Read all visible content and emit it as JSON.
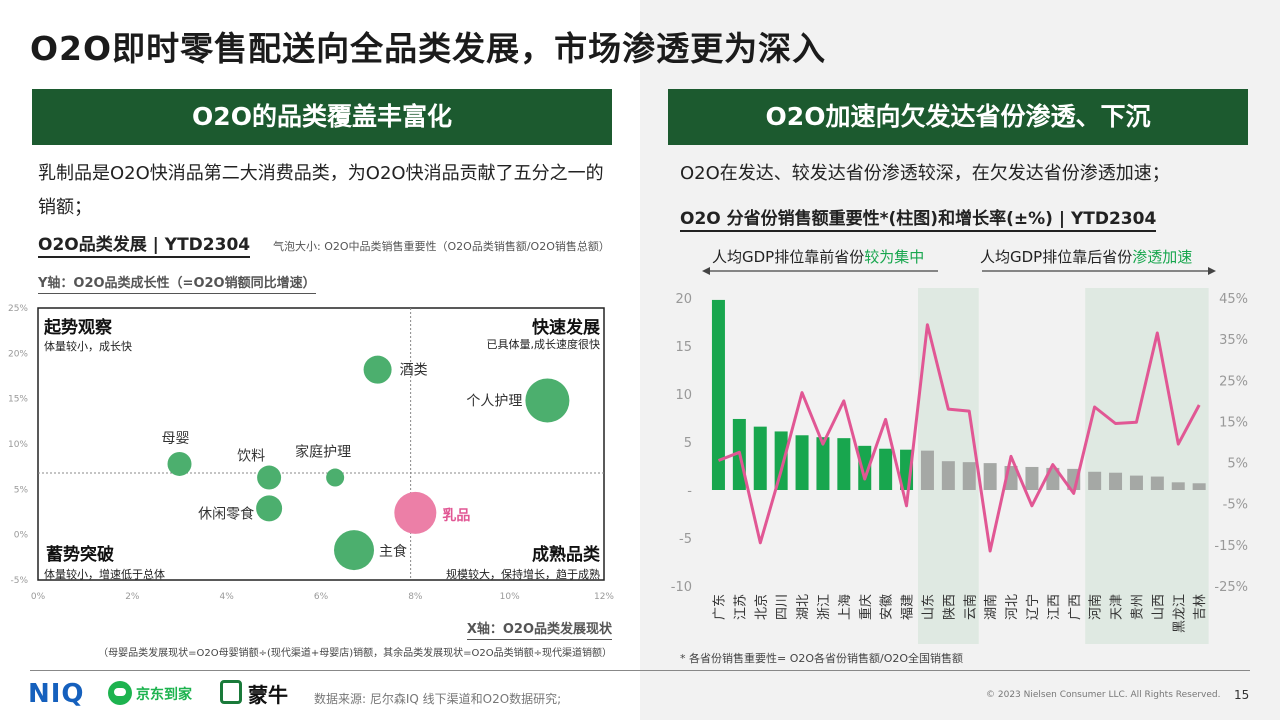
{
  "page": {
    "title": "O2O即时零售配送向全品类发展，市场渗透更为深入",
    "page_number": "15",
    "source": "数据来源: 尼尔森IQ 线下渠道和O2O数据研究;",
    "copyright": "© 2023 Nielsen Consumer LLC. All Rights Reserved.",
    "logos": [
      "NIQ",
      "京东到家",
      "蒙牛"
    ]
  },
  "left": {
    "banner": "O2O的品类覆盖丰富化",
    "desc": "乳制品是O2O快消品第二大消费品类，为O2O快消品贡献了五分之一的销额；",
    "subtitle": "O2O品类发展 | YTD2304",
    "bubble_note": "气泡大小: O2O中品类销售重要性（O2O品类销售额/O2O销售总额）",
    "y_axis_label": "Y轴：O2O品类成长性（=O2O销额同比增速）",
    "x_axis_label": "X轴：O2O品类发展现状",
    "x_footnote": "（母婴品类发展现状=O2O母婴销额÷(现代渠道+母婴店)销额，其余品类发展现状=O2O品类销额÷现代渠道销额）",
    "quadrants": {
      "tl_title": "起势观察",
      "tl_sub": "体量较小，成长快",
      "tr_title": "快速发展",
      "tr_sub": "已具体量,成长速度很快",
      "bl_title": "蓄势突破",
      "bl_sub": "体量较小，增速低于总体",
      "br_title": "成熟品类",
      "br_sub": "规模较大，保持增长，趋于成熟"
    }
  },
  "right": {
    "banner": "O2O加速向欠发达省份渗透、下沉",
    "desc": "O2O在发达、较发达省份渗透较深，在欠发达省份渗透加速；",
    "subtitle": "O2O 分省份销售额重要性*(柱图)和增长率(±%) | YTD2304",
    "group1_text": "人均GDP排位靠前省份",
    "group1_emph": "较为集中",
    "group2_text": "人均GDP排位靠后省份",
    "group2_emph": "渗透加速",
    "footnote": "* 各省份销售重要性= O2O各省份销售额/O2O全国销售额"
  },
  "colors": {
    "green_dark": "#1c5a2f",
    "bar_green": "#18a64e",
    "bar_grey": "#a5a8a5",
    "line_pink": "#e15794",
    "bubble_green": "#4caf6e",
    "bubble_pink": "#ec7fa7",
    "highlight_bg": "#dfe9e2"
  },
  "chart_data": [
    {
      "type": "scatter",
      "subtype": "bubble",
      "x_ticks": [
        "0%",
        "2%",
        "4%",
        "6%",
        "8%",
        "10%",
        "12%"
      ],
      "y_ticks": [
        "-5%",
        "0%",
        "5%",
        "10%",
        "15%",
        "20%",
        "25%"
      ],
      "xlim": [
        0,
        12
      ],
      "ylim": [
        -5,
        25
      ],
      "reference_lines": {
        "x": 7.9,
        "y": 6.8
      },
      "points": [
        {
          "name": "酒类",
          "x": 7.2,
          "y": 18.2,
          "size": 14
        },
        {
          "name": "个人护理",
          "x": 10.8,
          "y": 14.8,
          "size": 22
        },
        {
          "name": "母婴",
          "x": 3.0,
          "y": 7.8,
          "size": 12
        },
        {
          "name": "饮料",
          "x": 4.9,
          "y": 6.3,
          "size": 12
        },
        {
          "name": "家庭护理",
          "x": 6.3,
          "y": 6.3,
          "size": 9
        },
        {
          "name": "休闲零食",
          "x": 4.9,
          "y": 2.9,
          "size": 13
        },
        {
          "name": "乳品",
          "x": 8.0,
          "y": 2.4,
          "size": 21,
          "highlight": true
        },
        {
          "name": "主食",
          "x": 6.7,
          "y": -1.7,
          "size": 20
        }
      ]
    },
    {
      "type": "bar",
      "categories": [
        "广东",
        "江苏",
        "北京",
        "四川",
        "湖北",
        "浙江",
        "上海",
        "重庆",
        "安徽",
        "福建",
        "山东",
        "陕西",
        "云南",
        "湖南",
        "河北",
        "辽宁",
        "江西",
        "广西",
        "河南",
        "天津",
        "贵州",
        "山西",
        "黑龙江",
        "吉林"
      ],
      "series": [
        {
          "axis": "left",
          "values": [
            19.8,
            7.4,
            6.6,
            6.1,
            5.7,
            5.5,
            5.4,
            4.6,
            4.3,
            4.2,
            4.1,
            3.0,
            2.9,
            2.8,
            2.5,
            2.4,
            2.3,
            2.2,
            1.9,
            1.8,
            1.5,
            1.4,
            0.8,
            0.7
          ]
        },
        {
          "type": "line",
          "axis": "right",
          "values": [
            5.5,
            7.5,
            -14.5,
            3.0,
            22.0,
            9.5,
            20.0,
            1.0,
            15.5,
            -5.5,
            38.5,
            18.0,
            17.5,
            -16.5,
            6.5,
            -5.5,
            4.5,
            -2.5,
            18.5,
            14.5,
            14.8,
            36.5,
            9.5,
            19.0
          ]
        }
      ],
      "left_ticks": [
        "-10",
        "-5",
        "-",
        "5",
        "10",
        "15",
        "20"
      ],
      "right_ticks": [
        "-25%",
        "-15%",
        "-5%",
        "5%",
        "15%",
        "25%",
        "35%",
        "45%"
      ],
      "ylim_left": [
        -10,
        20
      ],
      "ylim_right": [
        -25,
        45
      ],
      "highlighted_groups": [
        [
          0,
          9
        ],
        [
          10,
          12
        ],
        [
          18,
          23
        ]
      ]
    }
  ]
}
